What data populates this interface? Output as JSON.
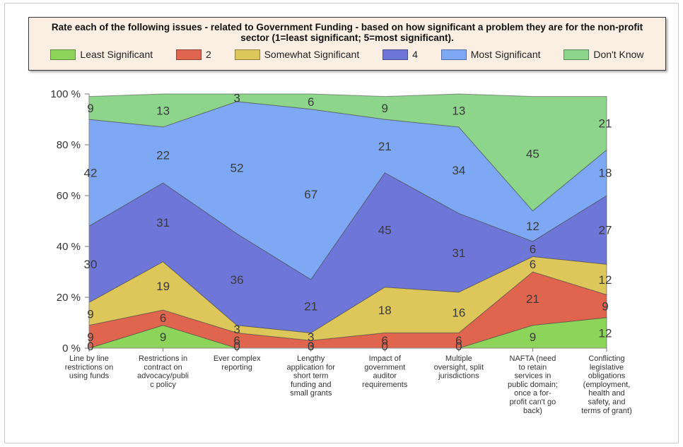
{
  "chart_data": {
    "type": "area",
    "stacked": true,
    "percent": true,
    "title": "Rate each of the following issues - related to Government Funding - based on how significant a problem they are for the non-profit sector (1=least significant; 5=most significant).",
    "categories": [
      [
        "Line by line",
        "restrictions on",
        "using funds"
      ],
      [
        "Restrictions in",
        "contract on",
        "advocacy/publi",
        "c policy"
      ],
      [
        "Ever complex",
        "reporting"
      ],
      [
        "Lengthy",
        "application for",
        "short term",
        "funding and",
        "small grants"
      ],
      [
        "Impact of",
        "government",
        "auditor",
        "requirements"
      ],
      [
        "Multiple",
        "oversight, split",
        "jurisdictions"
      ],
      [
        "NAFTA (need",
        "to retain",
        "services in",
        "public domain;",
        "once a for-",
        "profit can't go",
        "back)"
      ],
      [
        "Conflicting",
        "legislative",
        "obligations",
        "(employment,",
        "health and",
        "safety, and",
        "terms of grant)"
      ]
    ],
    "y_ticks": [
      "0 %",
      "20 %",
      "40 %",
      "60 %",
      "80 %",
      "100 %"
    ],
    "ylim": [
      0,
      100
    ],
    "legend_position": "top",
    "series": [
      {
        "name": "Least Significant",
        "color": "#8dd45a",
        "values": [
          0,
          9,
          0,
          0,
          0,
          0,
          9,
          12
        ]
      },
      {
        "name": "2",
        "color": "#e0654f",
        "values": [
          9,
          6,
          6,
          3,
          6,
          6,
          21,
          9
        ]
      },
      {
        "name": "Somewhat Significant",
        "color": "#ddc65a",
        "values": [
          9,
          19,
          3,
          3,
          18,
          16,
          6,
          12
        ]
      },
      {
        "name": "4",
        "color": "#6e76d8",
        "values": [
          30,
          31,
          36,
          21,
          45,
          31,
          6,
          27
        ]
      },
      {
        "name": "Most Significant",
        "color": "#7fa8f4",
        "values": [
          42,
          22,
          52,
          67,
          21,
          34,
          12,
          18
        ]
      },
      {
        "name": "Don't Know",
        "color": "#8ed58c",
        "values": [
          9,
          13,
          3,
          6,
          9,
          13,
          45,
          21
        ]
      }
    ]
  }
}
